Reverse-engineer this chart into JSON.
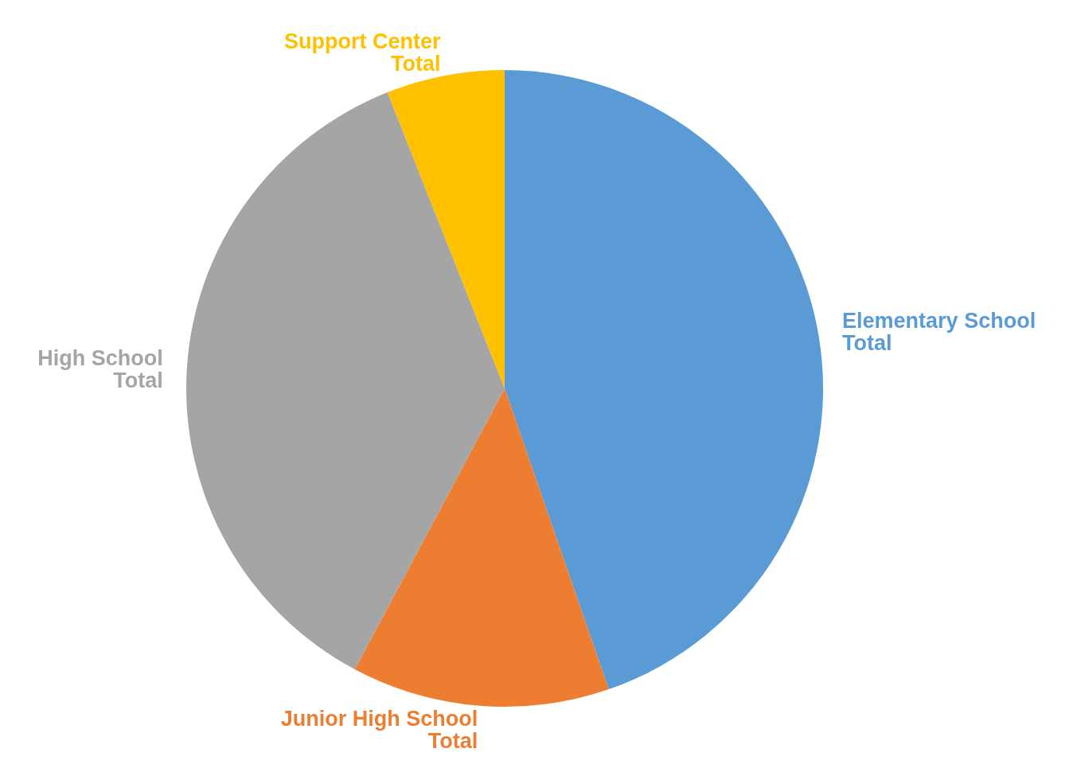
{
  "chart_data": {
    "type": "pie",
    "categories": [
      "Elementary School Total",
      "Junior High School Total",
      "High School Total",
      "Support Center Total"
    ],
    "values": [
      44.7,
      13.1,
      36.2,
      6.0
    ],
    "colors": [
      "#5b9bd5",
      "#ed7d31",
      "#a5a5a5",
      "#ffc000"
    ]
  }
}
